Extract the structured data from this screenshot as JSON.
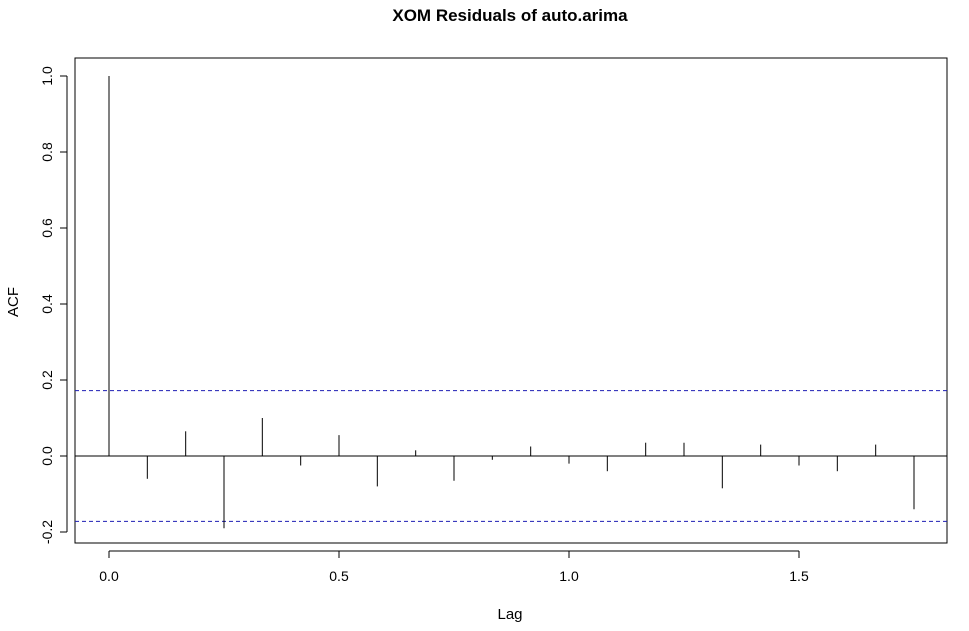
{
  "chart_data": {
    "type": "bar",
    "subtype": "acf",
    "title": "XOM Residuals of auto.arima",
    "xlabel": "Lag",
    "ylabel": "ACF",
    "xlim": [
      -0.0729,
      1.8229
    ],
    "ylim": [
      -0.2,
      1.0
    ],
    "xticks": [
      "0.0",
      "0.5",
      "1.0",
      "1.5"
    ],
    "yticks": [
      "-0.2",
      "0.0",
      "0.2",
      "0.4",
      "0.6",
      "0.8",
      "1.0"
    ],
    "x": [
      0.0,
      0.0833,
      0.1667,
      0.25,
      0.3333,
      0.4167,
      0.5,
      0.5833,
      0.6667,
      0.75,
      0.8333,
      0.9167,
      1.0,
      1.0833,
      1.1667,
      1.25,
      1.3333,
      1.4167,
      1.5,
      1.5833,
      1.6667,
      1.75
    ],
    "values": [
      1.0,
      -0.06,
      0.065,
      -0.19,
      0.1,
      -0.025,
      0.055,
      -0.08,
      0.015,
      -0.065,
      -0.01,
      0.025,
      -0.02,
      -0.04,
      0.035,
      0.035,
      -0.085,
      0.03,
      -0.025,
      -0.04,
      0.03,
      -0.14
    ],
    "confidence_bound": 0.172,
    "grid": false,
    "colors": {
      "bars": "#000000",
      "confidence_lines": "#1f1fb4",
      "zero_line": "#000000"
    }
  }
}
